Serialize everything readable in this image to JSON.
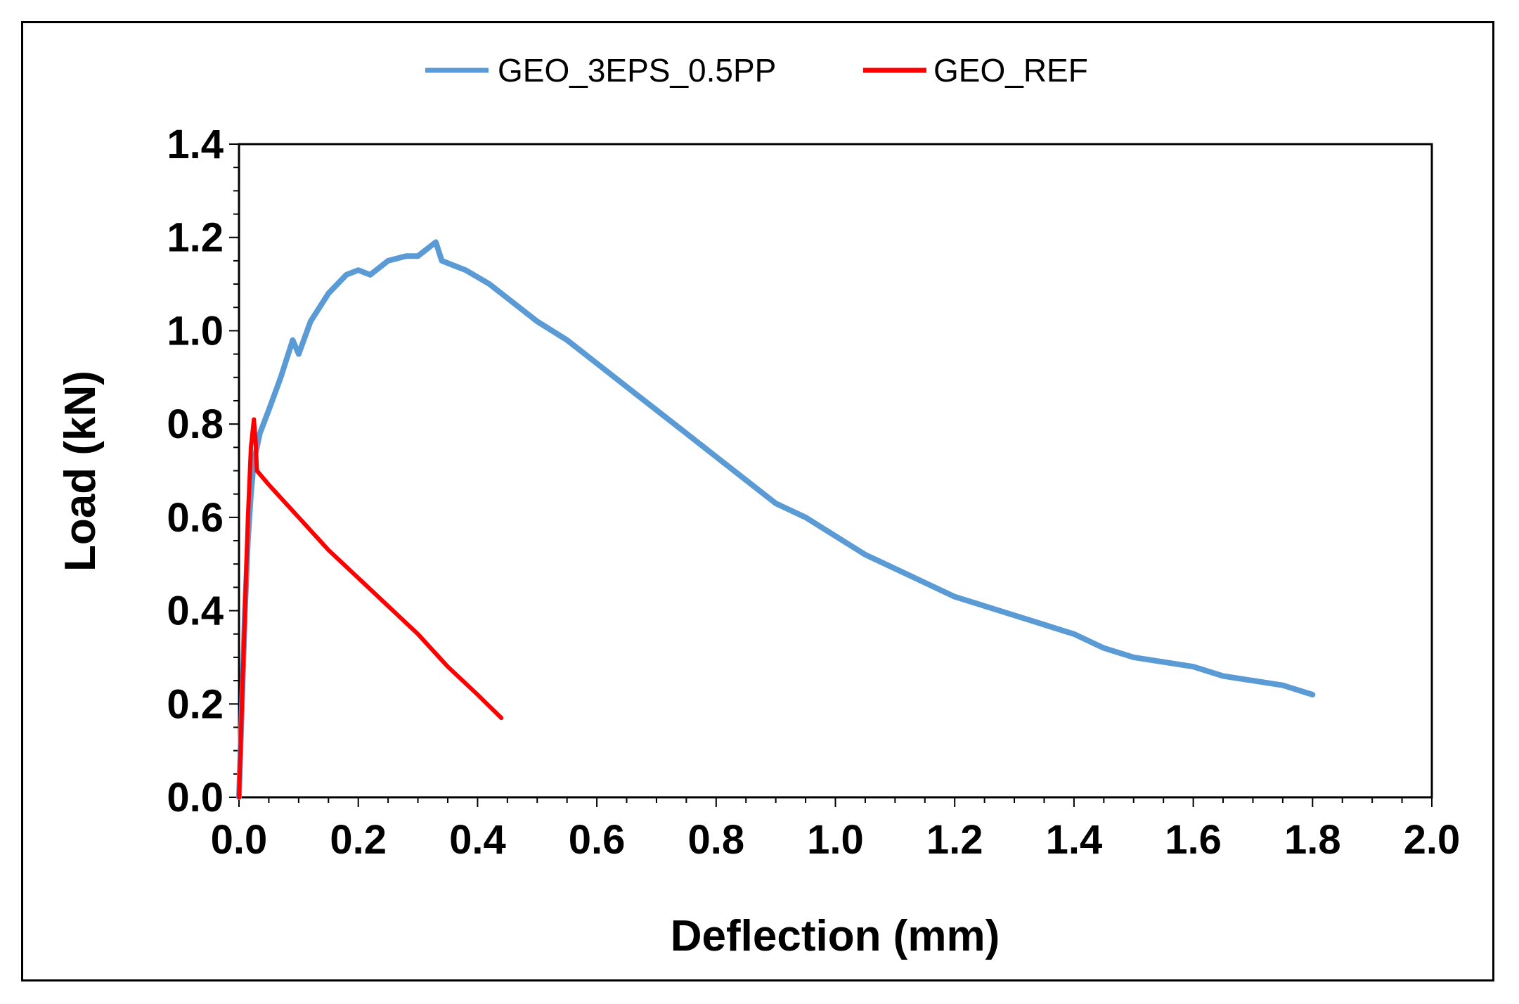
{
  "chart_data": {
    "type": "line",
    "title": "",
    "xlabel": "Deflection (mm)",
    "ylabel": "Load (kN)",
    "xlim": [
      0,
      2.0
    ],
    "ylim": [
      0,
      1.4
    ],
    "x_ticks": [
      "0.0",
      "0.2",
      "0.4",
      "0.6",
      "0.8",
      "1.0",
      "1.2",
      "1.4",
      "1.6",
      "1.8",
      "2.0"
    ],
    "y_ticks": [
      "0.0",
      "0.2",
      "0.4",
      "0.6",
      "0.8",
      "1.0",
      "1.2",
      "1.4"
    ],
    "grid": false,
    "legend_position": "top-center",
    "series": [
      {
        "name": "GEO_3EPS_0.5PP",
        "color": "#5b9bd5",
        "points": [
          [
            0.0,
            0.0
          ],
          [
            0.005,
            0.2
          ],
          [
            0.01,
            0.4
          ],
          [
            0.015,
            0.55
          ],
          [
            0.02,
            0.65
          ],
          [
            0.025,
            0.72
          ],
          [
            0.035,
            0.78
          ],
          [
            0.05,
            0.83
          ],
          [
            0.07,
            0.9
          ],
          [
            0.09,
            0.98
          ],
          [
            0.1,
            0.95
          ],
          [
            0.12,
            1.02
          ],
          [
            0.15,
            1.08
          ],
          [
            0.18,
            1.12
          ],
          [
            0.2,
            1.13
          ],
          [
            0.22,
            1.12
          ],
          [
            0.25,
            1.15
          ],
          [
            0.28,
            1.16
          ],
          [
            0.3,
            1.16
          ],
          [
            0.32,
            1.18
          ],
          [
            0.33,
            1.19
          ],
          [
            0.34,
            1.15
          ],
          [
            0.38,
            1.13
          ],
          [
            0.42,
            1.1
          ],
          [
            0.46,
            1.06
          ],
          [
            0.5,
            1.02
          ],
          [
            0.55,
            0.98
          ],
          [
            0.6,
            0.93
          ],
          [
            0.65,
            0.88
          ],
          [
            0.7,
            0.83
          ],
          [
            0.75,
            0.78
          ],
          [
            0.8,
            0.73
          ],
          [
            0.85,
            0.68
          ],
          [
            0.9,
            0.63
          ],
          [
            0.95,
            0.6
          ],
          [
            1.0,
            0.56
          ],
          [
            1.05,
            0.52
          ],
          [
            1.1,
            0.49
          ],
          [
            1.15,
            0.46
          ],
          [
            1.2,
            0.43
          ],
          [
            1.25,
            0.41
          ],
          [
            1.3,
            0.39
          ],
          [
            1.35,
            0.37
          ],
          [
            1.4,
            0.35
          ],
          [
            1.45,
            0.32
          ],
          [
            1.5,
            0.3
          ],
          [
            1.55,
            0.29
          ],
          [
            1.6,
            0.28
          ],
          [
            1.65,
            0.26
          ],
          [
            1.7,
            0.25
          ],
          [
            1.75,
            0.24
          ],
          [
            1.8,
            0.22
          ]
        ]
      },
      {
        "name": "GEO_REF",
        "color": "#ff0000",
        "points": [
          [
            0.0,
            0.0
          ],
          [
            0.005,
            0.2
          ],
          [
            0.01,
            0.4
          ],
          [
            0.015,
            0.6
          ],
          [
            0.02,
            0.75
          ],
          [
            0.025,
            0.81
          ],
          [
            0.028,
            0.76
          ],
          [
            0.03,
            0.7
          ],
          [
            0.05,
            0.67
          ],
          [
            0.1,
            0.6
          ],
          [
            0.15,
            0.53
          ],
          [
            0.2,
            0.47
          ],
          [
            0.25,
            0.41
          ],
          [
            0.3,
            0.35
          ],
          [
            0.35,
            0.28
          ],
          [
            0.4,
            0.22
          ],
          [
            0.44,
            0.17
          ]
        ]
      }
    ]
  }
}
